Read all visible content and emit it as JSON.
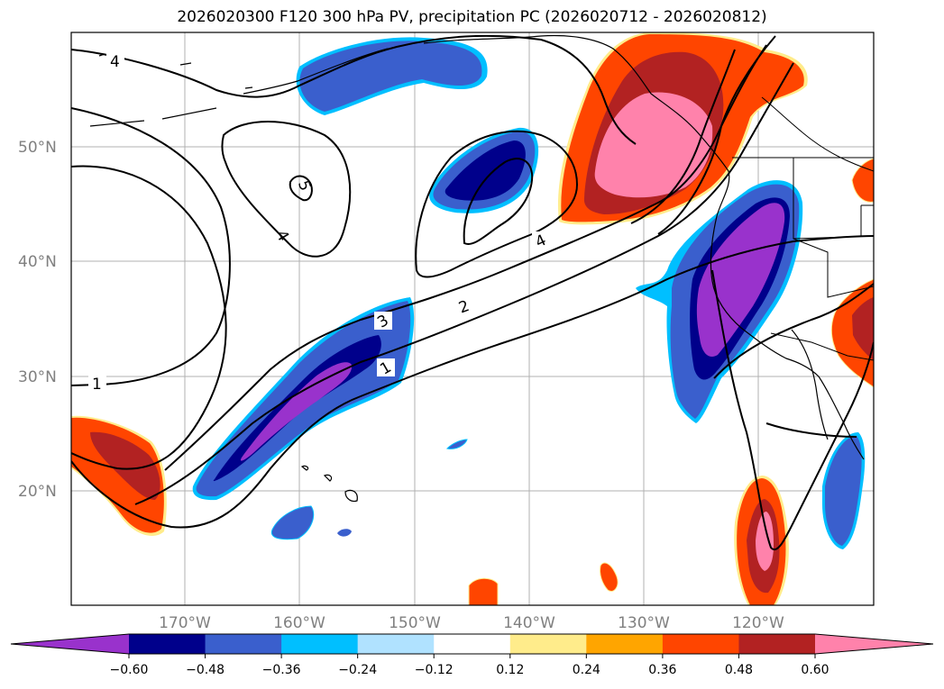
{
  "title": "2026020300 F120 300 hPa PV, precipitation PC (2026020712 - 2026020812)",
  "latitude_labels": [
    "50°N",
    "40°N",
    "30°N",
    "20°N"
  ],
  "longitude_labels": [
    "170°W",
    "160°W",
    "150°W",
    "140°W",
    "130°W",
    "120°W"
  ],
  "colorbar": {
    "ticks": [
      "−0.60",
      "−0.48",
      "−0.36",
      "−0.24",
      "−0.12",
      "0.12",
      "0.24",
      "0.36",
      "0.48",
      "0.60"
    ],
    "colors": [
      "#9932cc",
      "#00008b",
      "#3a5fcd",
      "#00bfff",
      "#b0e2ff",
      "#ffffff",
      "#ffec8b",
      "#ffa500",
      "#ff4500",
      "#b22222",
      "#ff82ab"
    ]
  },
  "pv_contour_labels": [
    "4",
    "5",
    "4",
    "3",
    "2",
    "1",
    "4",
    "1"
  ],
  "colors": {
    "purple": "#9932cc",
    "navy": "#00008b",
    "royal": "#3a5fcd",
    "sky": "#00bfff",
    "light": "#b0e2ff",
    "yellow": "#ffec8b",
    "orange": "#ffa500",
    "orangered": "#ff4500",
    "firebrick": "#b22222",
    "pink": "#ff82ab"
  }
}
